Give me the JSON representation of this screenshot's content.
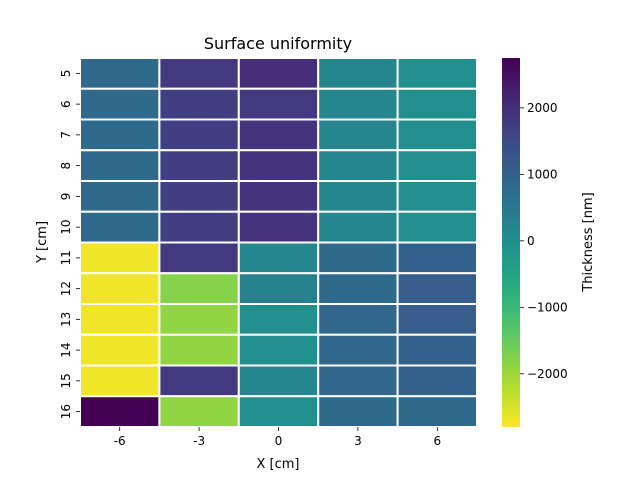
{
  "chart_data": {
    "type": "heatmap",
    "title": "Surface uniformity",
    "xlabel": "X [cm]",
    "ylabel": "Y [cm]",
    "x_categories": [
      "-6",
      "-3",
      "0",
      "3",
      "6"
    ],
    "y_categories": [
      "5",
      "6",
      "7",
      "8",
      "9",
      "10",
      "11",
      "12",
      "13",
      "14",
      "15",
      "16"
    ],
    "values": [
      [
        800,
        1800,
        2000,
        200,
        0
      ],
      [
        800,
        1700,
        1800,
        200,
        0
      ],
      [
        800,
        1700,
        1900,
        200,
        0
      ],
      [
        800,
        1700,
        1900,
        200,
        0
      ],
      [
        800,
        1700,
        1900,
        200,
        0
      ],
      [
        800,
        1700,
        1900,
        200,
        0
      ],
      [
        -2700,
        1800,
        200,
        800,
        1000
      ],
      [
        -2700,
        -1800,
        300,
        800,
        1100
      ],
      [
        -2700,
        -1900,
        0,
        900,
        1100
      ],
      [
        -2700,
        -1900,
        0,
        900,
        1000
      ],
      [
        -2700,
        1800,
        200,
        900,
        1000
      ],
      [
        2750,
        -1900,
        0,
        800,
        800
      ]
    ],
    "colorbar": {
      "label": "Thickness [nm]",
      "range": [
        -2800,
        2750
      ],
      "ticks": [
        "2000",
        "1000",
        "0",
        "−1000",
        "−2000"
      ],
      "tick_values": [
        2000,
        1000,
        0,
        -1000,
        -2000
      ],
      "colormap": "viridis",
      "reversed": true
    },
    "grid": false,
    "cell_separators": "white"
  }
}
